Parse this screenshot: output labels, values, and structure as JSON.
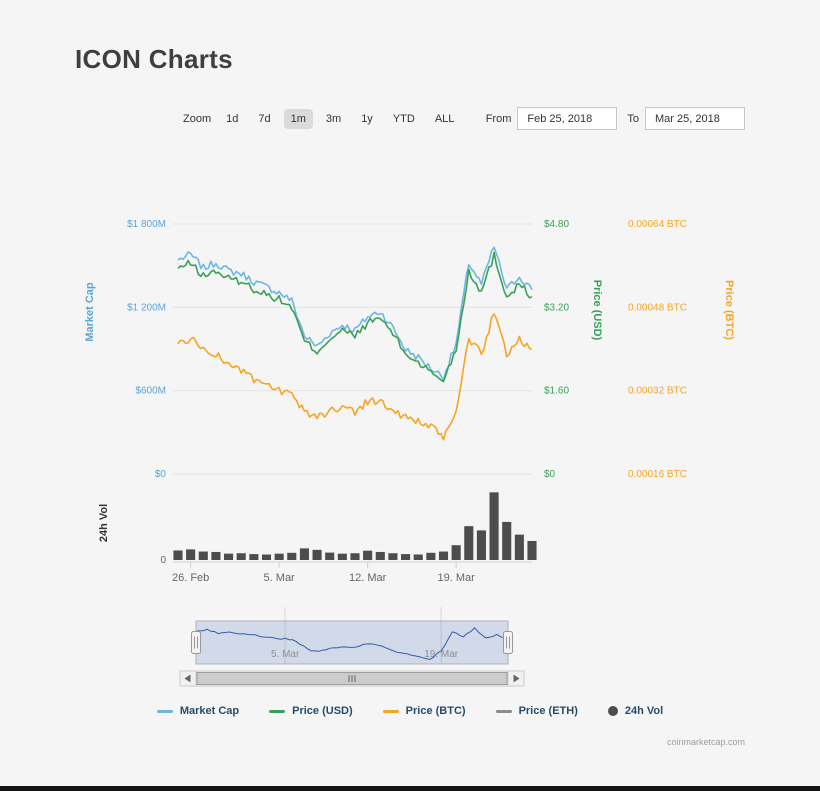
{
  "page": {
    "title": "ICON Charts",
    "watermark": "coinmarketcap.com"
  },
  "toolbar": {
    "zoom_label": "Zoom",
    "range_buttons": [
      "1d",
      "7d",
      "1m",
      "3m",
      "1y",
      "YTD",
      "ALL"
    ],
    "selected_range": "1m",
    "from_label": "From",
    "from_value": "Feb 25, 2018",
    "to_label": "To",
    "to_value": "Mar 25, 2018"
  },
  "colors": {
    "market_cap": "#6fb5e3",
    "price_usd": "#38a157",
    "price_btc": "#f6a423",
    "price_eth": "#8c8c8c",
    "volume": "#4d4d4d",
    "navigator_line": "#335cad",
    "axis_text": "#666666",
    "legend_text": "#274b6d"
  },
  "legend": {
    "items": [
      {
        "label": "Market Cap",
        "color": "#6fb5e3",
        "marker": "line"
      },
      {
        "label": "Price (USD)",
        "color": "#38a157",
        "marker": "line"
      },
      {
        "label": "Price (BTC)",
        "color": "#f6a423",
        "marker": "line"
      },
      {
        "label": "Price (ETH)",
        "color": "#8c8c8c",
        "marker": "line"
      },
      {
        "label": "24h Vol",
        "color": "#4d4d4d",
        "marker": "circle"
      }
    ]
  },
  "chart_data": {
    "type": "line",
    "title": "ICON Charts",
    "x_range": [
      "Feb 25, 2018",
      "Mar 25, 2018"
    ],
    "x": [
      "Feb 25",
      "Feb 26",
      "Feb 27",
      "Feb 28",
      "Mar 1",
      "Mar 2",
      "Mar 3",
      "Mar 4",
      "Mar 5",
      "Mar 6",
      "Mar 7",
      "Mar 8",
      "Mar 9",
      "Mar 10",
      "Mar 11",
      "Mar 12",
      "Mar 13",
      "Mar 14",
      "Mar 15",
      "Mar 16",
      "Mar 17",
      "Mar 18",
      "Mar 19",
      "Mar 20",
      "Mar 21",
      "Mar 22",
      "Mar 23",
      "Mar 24",
      "Mar 25"
    ],
    "x_ticks": [
      {
        "index": 1,
        "label": "26. Feb"
      },
      {
        "index": 8,
        "label": "5. Mar"
      },
      {
        "index": 15,
        "label": "12. Mar"
      },
      {
        "index": 22,
        "label": "19. Mar"
      }
    ],
    "axes": {
      "market_cap": {
        "title": "Market Cap",
        "min": 0,
        "max": 1800,
        "unit": "USD million",
        "ticks": [
          "$1 800M",
          "$1 200M",
          "$600M",
          "$0"
        ]
      },
      "price_usd": {
        "title": "Price (USD)",
        "min": 0,
        "max": 4.8,
        "unit": "USD",
        "ticks": [
          "$4.80",
          "$3.20",
          "$1.60",
          "$0"
        ]
      },
      "price_btc": {
        "title": "Price (BTC)",
        "min": 0.00016,
        "max": 0.00064,
        "unit": "BTC",
        "ticks": [
          "0.00064 BTC",
          "0.00048 BTC",
          "0.00032 BTC",
          "0.00016 BTC"
        ]
      },
      "volume": {
        "title": "24h Vol",
        "min": 0,
        "max": 350,
        "unit": "USD million",
        "ticks": [
          "0"
        ]
      }
    },
    "series": [
      {
        "name": "Market Cap",
        "axis": "market_cap",
        "type": "line",
        "color": "#6fb5e3",
        "values": [
          1541,
          1580,
          1482,
          1521,
          1463,
          1443,
          1385,
          1346,
          1307,
          1248,
          995,
          917,
          1014,
          1073,
          1034,
          1131,
          1170,
          1053,
          897,
          839,
          761,
          702,
          936,
          1521,
          1365,
          1638,
          1326,
          1424,
          1326
        ]
      },
      {
        "name": "Price (USD)",
        "axis": "price_usd",
        "type": "line",
        "color": "#38a157",
        "values": [
          3.95,
          4.05,
          3.8,
          3.9,
          3.75,
          3.7,
          3.55,
          3.45,
          3.35,
          3.2,
          2.55,
          2.35,
          2.6,
          2.75,
          2.65,
          2.9,
          3.0,
          2.7,
          2.3,
          2.15,
          1.95,
          1.8,
          2.4,
          3.9,
          3.5,
          4.2,
          3.4,
          3.65,
          3.4
        ]
      },
      {
        "name": "Price (BTC)",
        "axis": "price_btc",
        "type": "line",
        "color": "#f6a423",
        "values": [
          0.00041,
          0.00042,
          0.0004,
          0.00039,
          0.00037,
          0.00036,
          0.00034,
          0.00033,
          0.00032,
          0.00031,
          0.00028,
          0.00027,
          0.00028,
          0.00029,
          0.00028,
          0.0003,
          0.0003,
          0.00028,
          0.00027,
          0.00026,
          0.00025,
          0.00023,
          0.00028,
          0.00042,
          0.00039,
          0.00047,
          0.00039,
          0.00042,
          0.0004
        ]
      },
      {
        "name": "24h Vol",
        "axis": "volume",
        "type": "column",
        "color": "#4d4d4d",
        "values": [
          45,
          50,
          40,
          38,
          30,
          32,
          28,
          26,
          30,
          34,
          55,
          48,
          35,
          30,
          32,
          44,
          38,
          32,
          28,
          26,
          34,
          40,
          70,
          160,
          140,
          320,
          180,
          120,
          90
        ]
      }
    ],
    "navigator": {
      "labels": [
        {
          "index": 8,
          "label": "5. Mar"
        },
        {
          "index": 22,
          "label": "19. Mar"
        }
      ]
    },
    "legend_position": "bottom",
    "grid": true
  }
}
